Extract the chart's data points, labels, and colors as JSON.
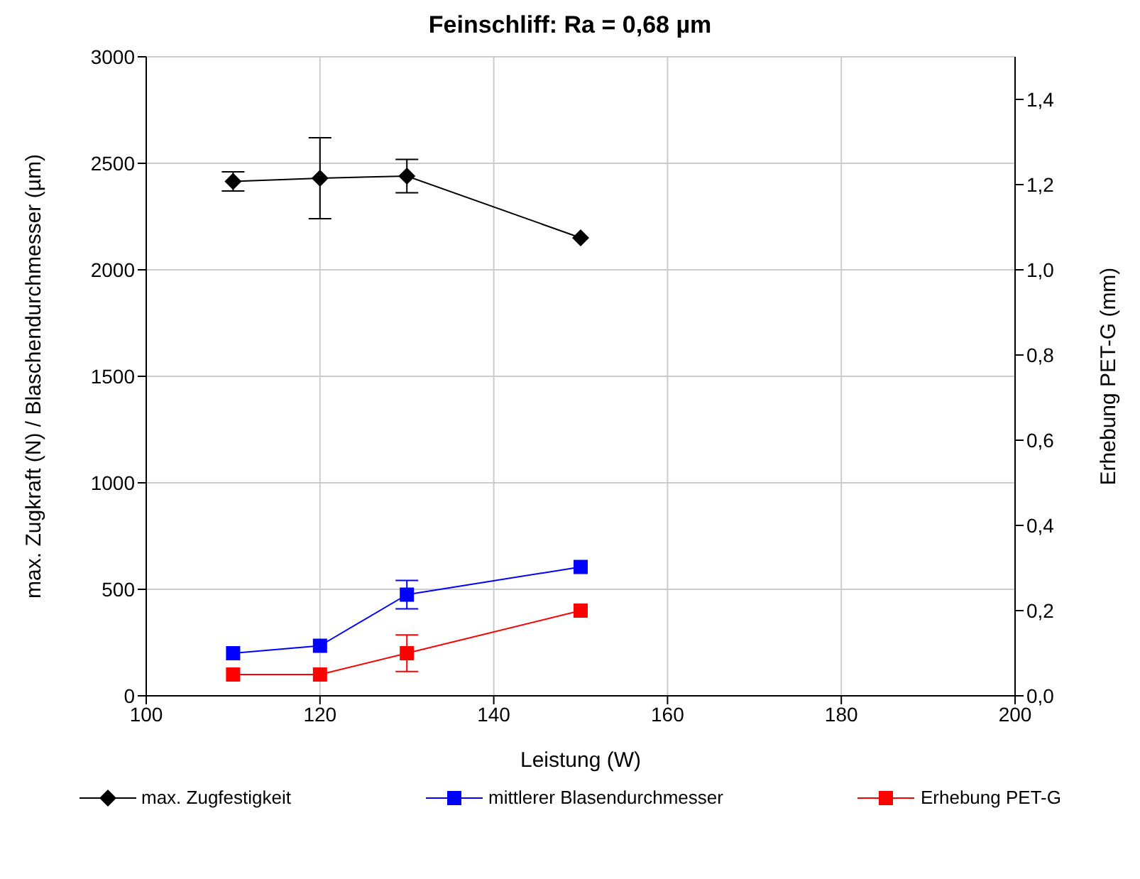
{
  "chart_data": {
    "type": "line",
    "title": "Feinschliff: Ra = 0,68 µm",
    "xlabel": "Leistung (W)",
    "ylabel": "max. Zugkraft (N)  /  Blaschendurchmesser (µm)",
    "y2label": "Erhebung PET-G (mm)",
    "x": [
      110,
      120,
      130,
      150
    ],
    "series": [
      {
        "name": "max. Zugfestigkeit",
        "color": "#000000",
        "marker": "diamond",
        "values": [
          2415,
          2430,
          2440,
          2150
        ],
        "errors": [
          45,
          190,
          78,
          null
        ]
      },
      {
        "name": "mittlerer Blasendurchmesser",
        "color": "#0000ff",
        "marker": "square",
        "values": [
          200,
          235,
          475,
          605
        ],
        "errors": [
          null,
          null,
          67,
          null
        ]
      },
      {
        "name": "Erhebung PET-G",
        "color": "#ff0000",
        "marker": "square",
        "axis": "y2",
        "values": [
          0.05,
          0.05,
          0.1,
          0.2
        ],
        "errors": [
          null,
          null,
          0.043,
          null
        ]
      }
    ],
    "xlim": [
      100,
      200
    ],
    "xticks": [
      100,
      120,
      140,
      160,
      180,
      200
    ],
    "ylim": [
      0,
      3000
    ],
    "yticks": [
      0,
      500,
      1000,
      1500,
      2000,
      2500,
      3000
    ],
    "y2lim": [
      0,
      1.5
    ],
    "y2ticks": [
      {
        "value": 0,
        "label": "0,0"
      },
      {
        "value": 0.2,
        "label": "0,2"
      },
      {
        "value": 0.4,
        "label": "0,4"
      },
      {
        "value": 0.6,
        "label": "0,6"
      },
      {
        "value": 0.8,
        "label": "0,8"
      },
      {
        "value": 1.0,
        "label": "1,0"
      },
      {
        "value": 1.2,
        "label": "1,2"
      },
      {
        "value": 1.4,
        "label": "1,4"
      }
    ],
    "grid": true,
    "legend": "bottom"
  }
}
